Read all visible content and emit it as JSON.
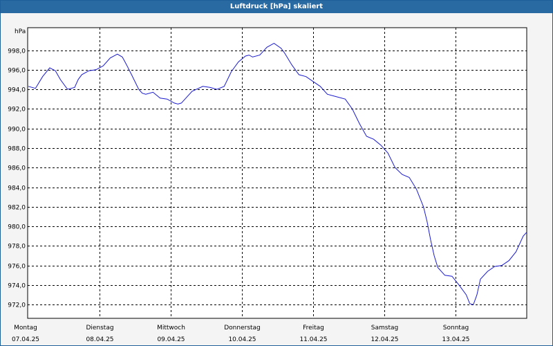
{
  "window": {
    "title": "Luftdruck [hPa] skaliert"
  },
  "colors": {
    "line": "#1a1ad0",
    "titlebar": "#2a6aa3",
    "grid": "#000000"
  },
  "chart_data": {
    "type": "line",
    "title": "Luftdruck [hPa] skaliert",
    "ylabel": "hPa",
    "xlabel": "",
    "ylim": [
      970.6,
      1000.3
    ],
    "xlim": [
      0,
      7
    ],
    "grid": true,
    "yticks": [
      "998,0",
      "996,0",
      "994,0",
      "992,0",
      "990,0",
      "988,0",
      "986,0",
      "984,0",
      "982,0",
      "980,0",
      "978,0",
      "976,0",
      "974,0",
      "972,0"
    ],
    "ytick_values": [
      998,
      996,
      994,
      992,
      990,
      988,
      986,
      984,
      982,
      980,
      978,
      976,
      974,
      972
    ],
    "xticks": [
      {
        "day": "Montag",
        "date": "07.04.25",
        "x": 0
      },
      {
        "day": "Dienstag",
        "date": "08.04.25",
        "x": 1
      },
      {
        "day": "Mittwoch",
        "date": "09.04.25",
        "x": 2
      },
      {
        "day": "Donnerstag",
        "date": "10.04.25",
        "x": 3
      },
      {
        "day": "Freitag",
        "date": "11.04.25",
        "x": 4
      },
      {
        "day": "Samstag",
        "date": "12.04.25",
        "x": 5
      },
      {
        "day": "Sonntag",
        "date": "13.04.25",
        "x": 6
      }
    ],
    "series": [
      {
        "name": "Luftdruck",
        "x": [
          0,
          0.1,
          0.2,
          0.3,
          0.38,
          0.45,
          0.55,
          0.65,
          0.7,
          0.75,
          0.85,
          0.95,
          1.05,
          1.15,
          1.25,
          1.32,
          1.38,
          1.45,
          1.55,
          1.6,
          1.65,
          1.75,
          1.85,
          1.95,
          2.05,
          2.1,
          2.15,
          2.2,
          2.3,
          2.45,
          2.55,
          2.65,
          2.75,
          2.85,
          2.95,
          3.05,
          3.1,
          3.15,
          3.25,
          3.35,
          3.45,
          3.55,
          3.6,
          3.7,
          3.8,
          3.9,
          4.0,
          4.1,
          4.2,
          4.3,
          4.45,
          4.55,
          4.65,
          4.75,
          4.85,
          4.95,
          5.05,
          5.15,
          5.25,
          5.35,
          5.45,
          5.55,
          5.6,
          5.65,
          5.7,
          5.75,
          5.85,
          5.95,
          6.05,
          6.15,
          6.2,
          6.25,
          6.3,
          6.35,
          6.45,
          6.55,
          6.65,
          6.75,
          6.85,
          6.95,
          7.0
        ],
        "values": [
          994.3,
          994.1,
          995.3,
          996.2,
          995.9,
          995.0,
          994.0,
          994.2,
          995.0,
          995.5,
          995.9,
          996.0,
          996.4,
          997.2,
          997.6,
          997.3,
          996.5,
          995.5,
          994.0,
          993.6,
          993.5,
          993.7,
          993.1,
          993.0,
          992.6,
          992.5,
          992.6,
          993.0,
          993.8,
          994.3,
          994.2,
          994.0,
          994.3,
          995.8,
          996.8,
          997.4,
          997.5,
          997.3,
          997.5,
          998.3,
          998.7,
          998.2,
          997.7,
          996.5,
          995.5,
          995.3,
          994.8,
          994.3,
          993.5,
          993.3,
          993.0,
          992.0,
          990.5,
          989.2,
          988.9,
          988.3,
          987.5,
          986.0,
          985.3,
          985.0,
          983.8,
          982.0,
          980.5,
          978.6,
          977.0,
          975.8,
          975.0,
          974.9,
          974.0,
          973.0,
          972.1,
          972.0,
          973.0,
          974.6,
          975.4,
          975.9,
          976.0,
          976.5,
          977.4,
          979.0,
          979.4
        ]
      }
    ]
  }
}
